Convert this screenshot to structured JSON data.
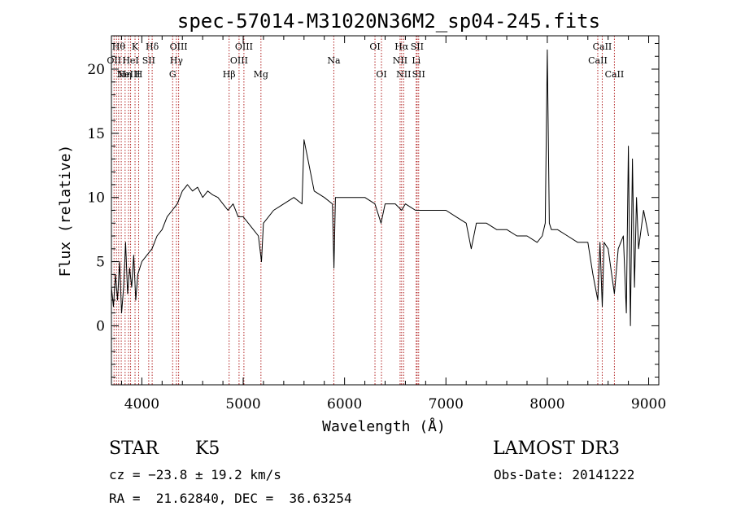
{
  "chart_data": {
    "type": "line",
    "title": "spec-57014-M31020N36M2_sp04-245.fits",
    "xlabel": "Wavelength (Å)",
    "ylabel": "Flux (relative)",
    "xlim": [
      3700,
      9100
    ],
    "ylim": [
      -4.6,
      22.6
    ],
    "xticks": [
      4000,
      5000,
      6000,
      7000,
      8000,
      9000
    ],
    "yticks": [
      0,
      5,
      10,
      15,
      20
    ],
    "grid": false,
    "line_color": "#000000",
    "marker_color": "#b22222",
    "series": [
      {
        "x": [
          3700,
          3720,
          3740,
          3760,
          3780,
          3800,
          3820,
          3840,
          3860,
          3880,
          3900,
          3920,
          3940,
          3960,
          3980,
          4000,
          4050,
          4100,
          4150,
          4200,
          4250,
          4300,
          4350,
          4400,
          4450,
          4500,
          4550,
          4600,
          4650,
          4700,
          4750,
          4800,
          4850,
          4900,
          4950,
          5000,
          5050,
          5100,
          5150,
          5180,
          5200,
          5250,
          5300,
          5400,
          5500,
          5580,
          5600,
          5700,
          5800,
          5880,
          5895,
          5910,
          6000,
          6100,
          6200,
          6300,
          6360,
          6400,
          6500,
          6563,
          6600,
          6700,
          6800,
          6900,
          7000,
          7100,
          7200,
          7250,
          7300,
          7400,
          7500,
          7600,
          7700,
          7800,
          7900,
          7950,
          7980,
          8000,
          8020,
          8040,
          8100,
          8200,
          8300,
          8400,
          8450,
          8498,
          8520,
          8542,
          8560,
          8600,
          8662,
          8700,
          8750,
          8780,
          8800,
          8820,
          8840,
          8860,
          8880,
          8900,
          8950,
          9000
        ],
        "y": [
          3.0,
          1.5,
          4.0,
          2.0,
          5.0,
          1.0,
          3.0,
          6.5,
          2.5,
          4.5,
          3.0,
          5.5,
          2.0,
          4.0,
          4.5,
          5.0,
          5.5,
          6.0,
          7.0,
          7.5,
          8.5,
          9.0,
          9.5,
          10.5,
          11.0,
          10.5,
          10.8,
          10.0,
          10.5,
          10.2,
          10.0,
          9.5,
          9.0,
          9.5,
          8.5,
          8.5,
          8.0,
          7.5,
          7.0,
          5.0,
          8.0,
          8.5,
          9.0,
          9.5,
          10.0,
          9.5,
          14.5,
          10.5,
          10.0,
          9.5,
          4.5,
          10.0,
          10.0,
          10.0,
          10.0,
          9.5,
          8.0,
          9.5,
          9.5,
          9.0,
          9.5,
          9.0,
          9.0,
          9.0,
          9.0,
          8.5,
          8.0,
          6.0,
          8.0,
          8.0,
          7.5,
          7.5,
          7.0,
          7.0,
          6.5,
          7.0,
          8.0,
          21.5,
          8.0,
          7.5,
          7.5,
          7.0,
          6.5,
          6.5,
          4.0,
          2.0,
          6.5,
          1.5,
          6.5,
          6.0,
          2.5,
          6.0,
          7.0,
          1.0,
          14.0,
          0.0,
          13.0,
          3.0,
          10.0,
          6.0,
          9.0,
          7.0
        ]
      }
    ],
    "line_markers": [
      {
        "wl": 3726,
        "label": "OII",
        "row": 1
      },
      {
        "wl": 3750,
        "label": "",
        "row": 0
      },
      {
        "wl": 3771,
        "label": "Hθ",
        "row": 0
      },
      {
        "wl": 3797,
        "label": "",
        "row": 0
      },
      {
        "wl": 3835,
        "label": "Hη",
        "row": 2
      },
      {
        "wl": 3869,
        "label": "NeIII",
        "row": 2
      },
      {
        "wl": 3889,
        "label": "HeI",
        "row": 1
      },
      {
        "wl": 3933,
        "label": "K",
        "row": 0
      },
      {
        "wl": 3969,
        "label": "H",
        "row": 2
      },
      {
        "wl": 4068,
        "label": "SII",
        "row": 1
      },
      {
        "wl": 4102,
        "label": "Hδ",
        "row": 0
      },
      {
        "wl": 4304,
        "label": "G",
        "row": 2
      },
      {
        "wl": 4341,
        "label": "Hγ",
        "row": 1
      },
      {
        "wl": 4363,
        "label": "OIII",
        "row": 0
      },
      {
        "wl": 4861,
        "label": "Hβ",
        "row": 2
      },
      {
        "wl": 4959,
        "label": "OIII",
        "row": 1
      },
      {
        "wl": 5007,
        "label": "OIII",
        "row": 0
      },
      {
        "wl": 5175,
        "label": "Mg",
        "row": 2
      },
      {
        "wl": 5894,
        "label": "Na",
        "row": 1
      },
      {
        "wl": 6300,
        "label": "OI",
        "row": 0
      },
      {
        "wl": 6364,
        "label": "OI",
        "row": 2
      },
      {
        "wl": 6548,
        "label": "NII",
        "row": 1
      },
      {
        "wl": 6563,
        "label": "Hα",
        "row": 0
      },
      {
        "wl": 6583,
        "label": "NII",
        "row": 2
      },
      {
        "wl": 6707,
        "label": "Li",
        "row": 1
      },
      {
        "wl": 6716,
        "label": "SII",
        "row": 0
      },
      {
        "wl": 6731,
        "label": "SII",
        "row": 2
      },
      {
        "wl": 8498,
        "label": "CaII",
        "row": 1
      },
      {
        "wl": 8542,
        "label": "CaII",
        "row": 0
      },
      {
        "wl": 8662,
        "label": "CaII",
        "row": 2
      }
    ]
  },
  "info": {
    "object_class": "STAR",
    "subclass": "K5",
    "survey": "LAMOST DR3",
    "cz": "cz = −23.8 ± 19.2 km/s",
    "obs_date": "Obs-Date: 20141222",
    "coords": "RA =  21.62840, DEC =  36.63254"
  }
}
